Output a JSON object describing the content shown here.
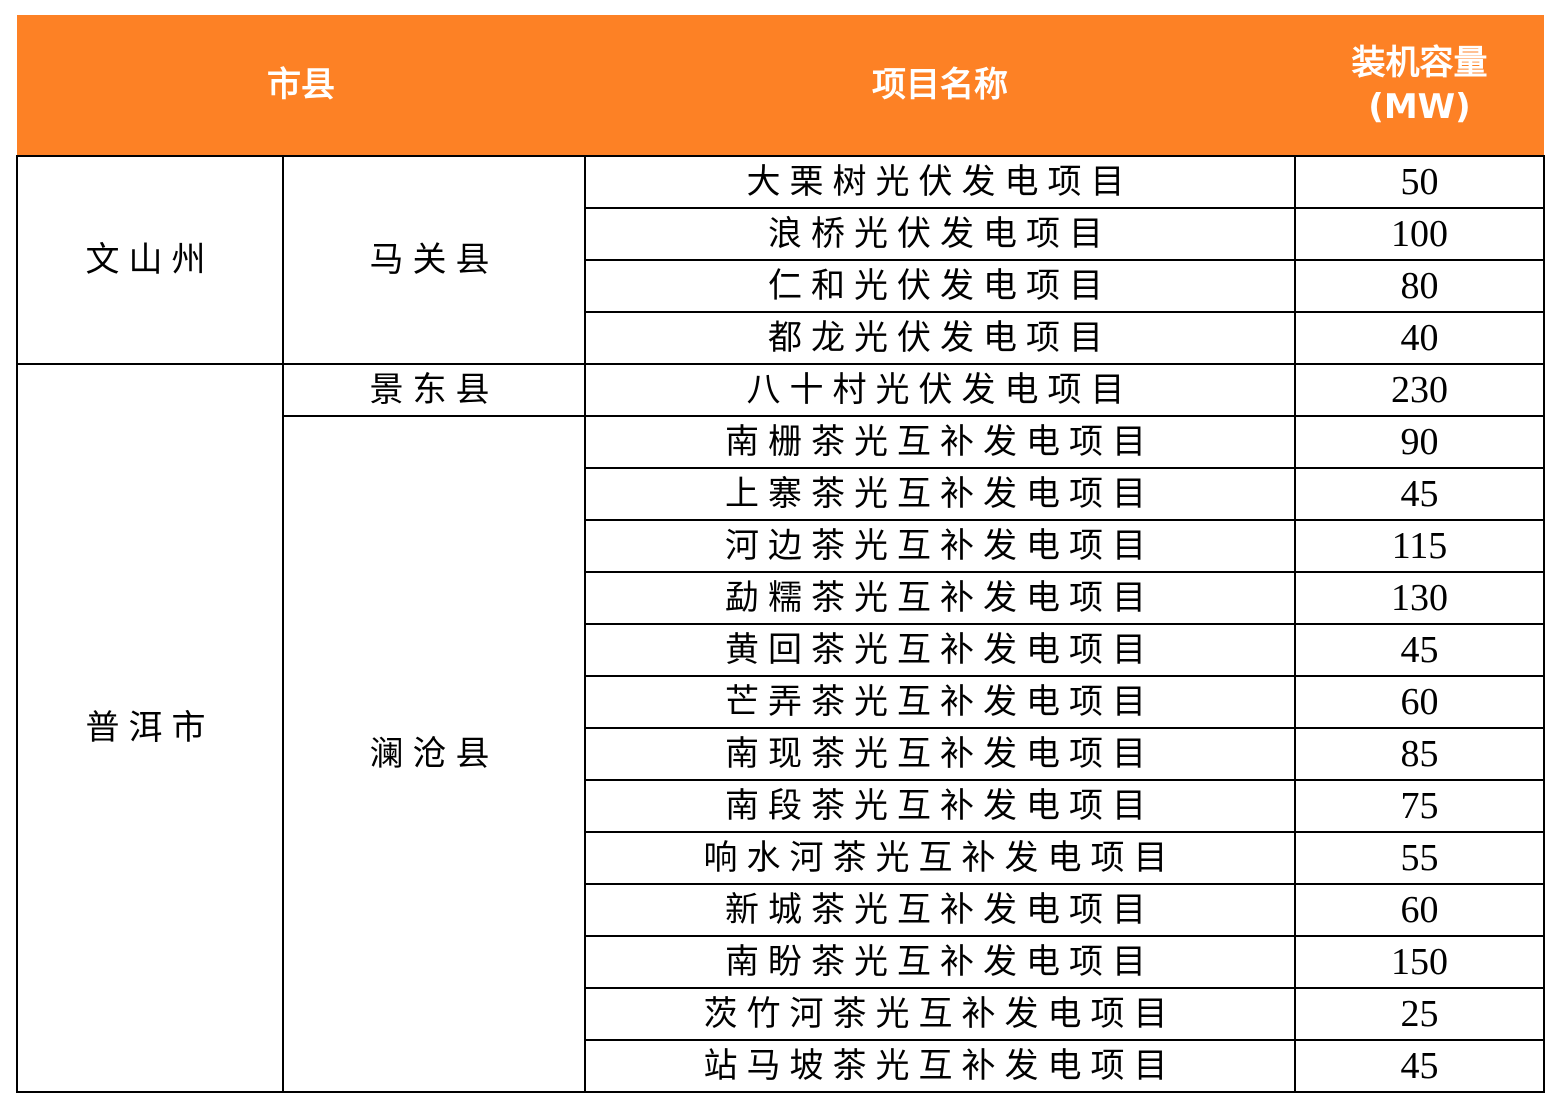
{
  "header": {
    "region": "市县",
    "project": "项目名称",
    "capacity_line1": "装机容量",
    "capacity_line2": "(MW)"
  },
  "header_color": "#fd8125",
  "groups": [
    {
      "city": "文山州",
      "counties": [
        {
          "county": "马关县",
          "rows": [
            {
              "project": "大栗树光伏发电项目",
              "capacity": "50"
            },
            {
              "project": "浪桥光伏发电项目",
              "capacity": "100"
            },
            {
              "project": "仁和光伏发电项目",
              "capacity": "80"
            },
            {
              "project": "都龙光伏发电项目",
              "capacity": "40"
            }
          ]
        }
      ]
    },
    {
      "city": "普洱市",
      "counties": [
        {
          "county": "景东县",
          "rows": [
            {
              "project": "八十村光伏发电项目",
              "capacity": "230"
            }
          ]
        },
        {
          "county": "澜沧县",
          "rows": [
            {
              "project": "南栅茶光互补发电项目",
              "capacity": "90"
            },
            {
              "project": "上寨茶光互补发电项目",
              "capacity": "45"
            },
            {
              "project": "河边茶光互补发电项目",
              "capacity": "115"
            },
            {
              "project": "勐糯茶光互补发电项目",
              "capacity": "130"
            },
            {
              "project": "黄回茶光互补发电项目",
              "capacity": "45"
            },
            {
              "project": "芒弄茶光互补发电项目",
              "capacity": "60"
            },
            {
              "project": "南现茶光互补发电项目",
              "capacity": "85"
            },
            {
              "project": "南段茶光互补发电项目",
              "capacity": "75"
            },
            {
              "project": "响水河茶光互补发电项目",
              "capacity": "55"
            },
            {
              "project": "新城茶光互补发电项目",
              "capacity": "60"
            },
            {
              "project": "南盼茶光互补发电项目",
              "capacity": "150"
            },
            {
              "project": "茨竹河茶光互补发电项目",
              "capacity": "25"
            },
            {
              "project": "站马坡茶光互补发电项目",
              "capacity": "45"
            }
          ]
        }
      ]
    }
  ]
}
